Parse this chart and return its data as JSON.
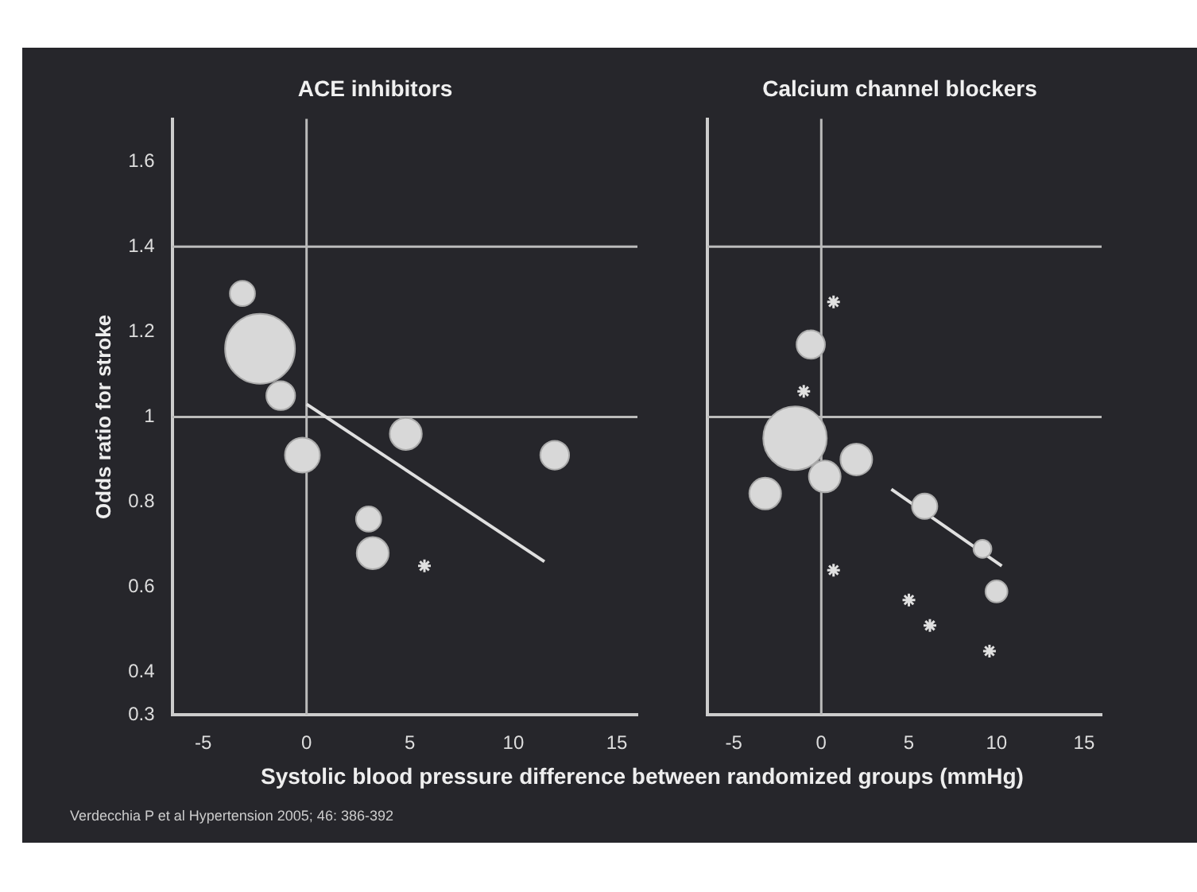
{
  "chart_data": [
    {
      "type": "bubble",
      "title": "ACE inhibitors",
      "xlabel": "Systolic blood pressure difference between randomized groups (mmHg)",
      "ylabel": "Odds ratio for stroke",
      "xlim": [
        -6.5,
        16
      ],
      "xticks": [
        -5,
        0,
        5,
        10,
        15
      ],
      "ylim": [
        0.3,
        1.7
      ],
      "yticks": [
        0.3,
        0.4,
        0.6,
        0.8,
        1.0,
        1.2,
        1.4,
        1.6
      ],
      "ref_lines": [
        {
          "axis": "y",
          "value": 1.0,
          "color": "#bbbbbb"
        },
        {
          "axis": "y",
          "value": 1.4,
          "color": "#bbbbbb"
        },
        {
          "axis": "x",
          "value": 0,
          "color": "#bbbbbb"
        }
      ],
      "annotations": [
        "Verdecchia P et al Hypertension 2005; 46: 386-392"
      ],
      "series": [
        {
          "color": "#d8d8d8",
          "x": [
            -3.1,
            -2.25,
            -1.25,
            4.8,
            -0.2,
            12,
            3,
            3.2
          ],
          "values": [
            1.29,
            1.16,
            1.05,
            0.96,
            0.91,
            0.91,
            0.76,
            0.68
          ],
          "sizes": [
            0.13,
            1,
            0.17,
            0.21,
            0.25,
            0.17,
            0.13,
            0.21
          ]
        },
        {
          "type": "scatter",
          "marker": "cross",
          "color": "#e0e0e0",
          "x": [
            5.7
          ],
          "values": [
            0.65
          ]
        },
        {
          "type": "line",
          "color": "#e0e0e0",
          "line_style": "solid",
          "x": [
            0,
            11.5
          ],
          "values": [
            1.03,
            0.66
          ]
        }
      ]
    },
    {
      "type": "bubble",
      "title": "Calcium channel blockers",
      "tick_labels": "x",
      "xlim": [
        -6.5,
        16
      ],
      "xticks": [
        -5,
        0,
        5,
        10,
        15
      ],
      "ylim": [
        0.3,
        1.7
      ],
      "ref_lines": [
        {
          "axis": "y",
          "value": 1.0,
          "color": "#bbbbbb"
        },
        {
          "axis": "y",
          "value": 1.4,
          "color": "#bbbbbb"
        },
        {
          "axis": "x",
          "value": 0,
          "color": "#bbbbbb"
        }
      ],
      "series": [
        {
          "color": "#d8d8d8",
          "x": [
            -0.6,
            -1.5,
            2.0,
            0.2,
            -3.2,
            5.9,
            9.2,
            10.0
          ],
          "values": [
            1.17,
            0.95,
            0.9,
            0.86,
            0.82,
            0.79,
            0.69,
            0.59
          ],
          "sizes": [
            0.2,
            1,
            0.25,
            0.25,
            0.25,
            0.16,
            0.08,
            0.12
          ]
        },
        {
          "type": "scatter",
          "marker": "cross",
          "color": "#e0e0e0",
          "x": [
            0.7,
            -1.0,
            0.7,
            5,
            6.2,
            9.6
          ],
          "values": [
            1.27,
            1.06,
            0.64,
            0.57,
            0.51,
            0.45
          ]
        },
        {
          "type": "line",
          "color": "#e0e0e0",
          "line_style": "solid",
          "x": [
            4,
            10.3
          ],
          "values": [
            0.83,
            0.65
          ]
        }
      ]
    }
  ]
}
